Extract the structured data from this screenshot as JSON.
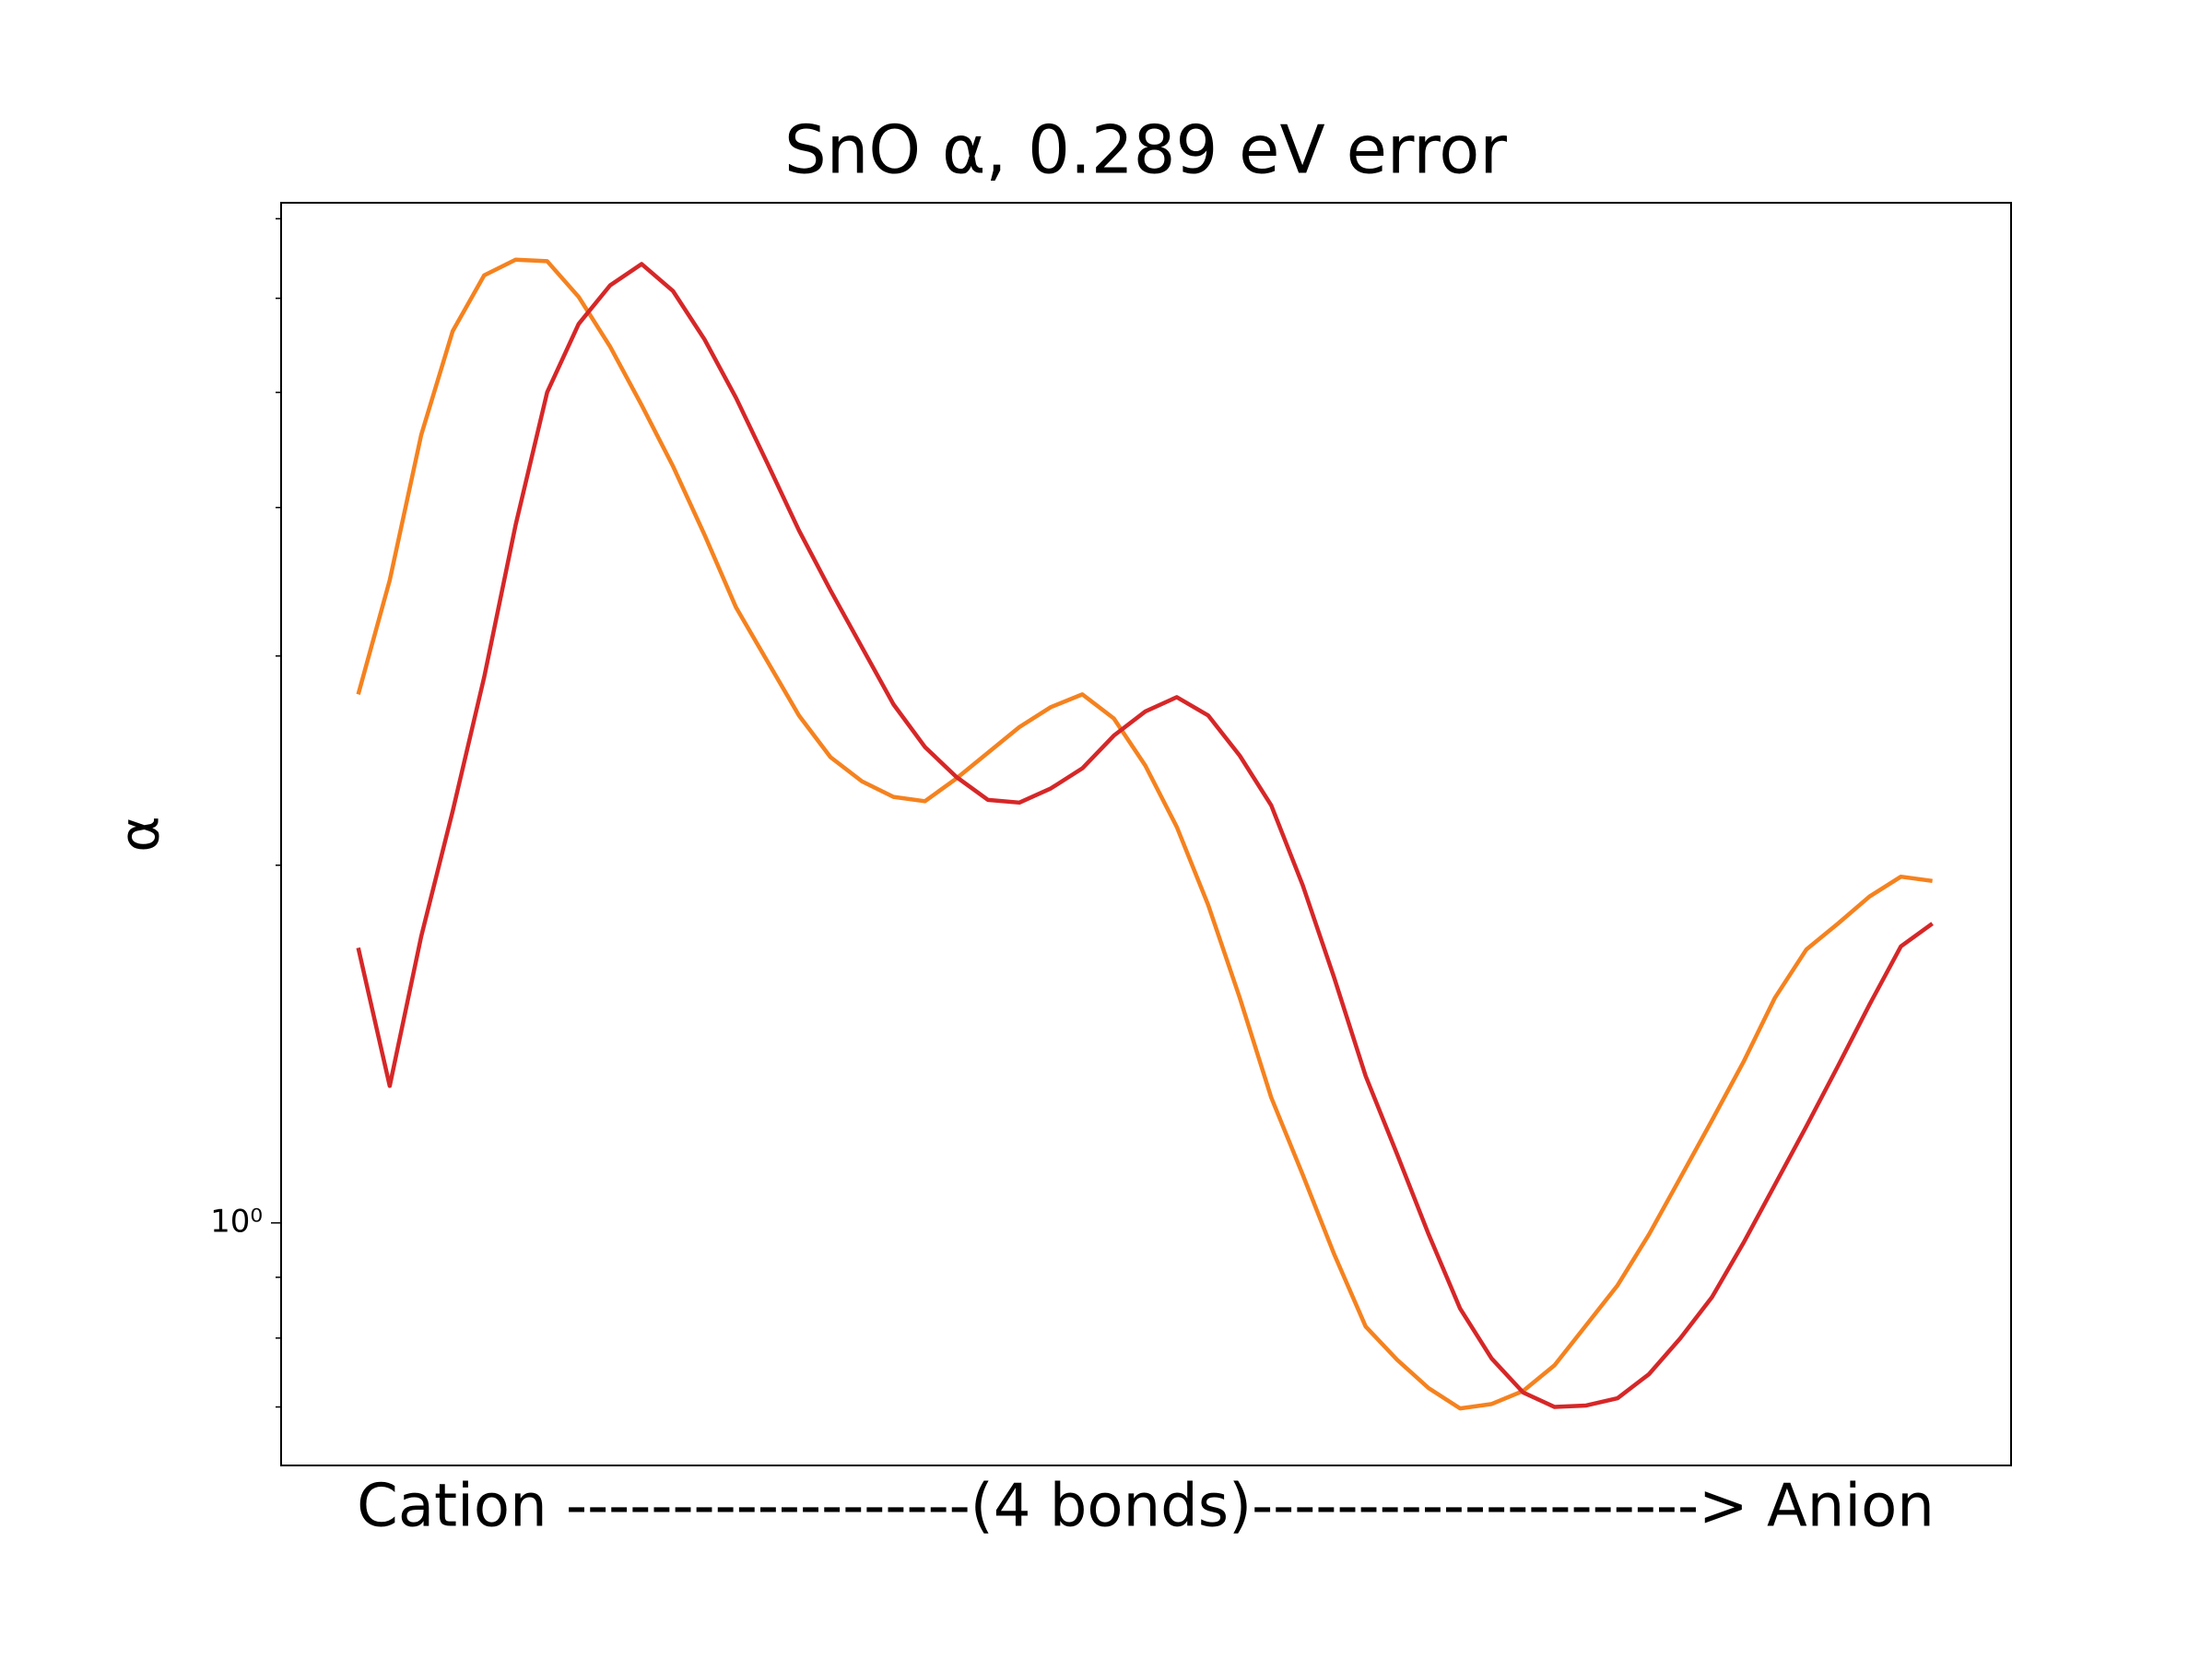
{
  "chart_data": {
    "type": "line",
    "title": "SnO α, 0.289 eV error",
    "xlabel": "Cation -------------------(4 bonds)---------------------> Anion",
    "ylabel": "α",
    "x": [
      0,
      2,
      4,
      6,
      8,
      10,
      12,
      14,
      16,
      18,
      20,
      22,
      24,
      26,
      28,
      30,
      32,
      34,
      36,
      38,
      40,
      42,
      44,
      46,
      48,
      50,
      52,
      54,
      56,
      58,
      60,
      62,
      64,
      66,
      68,
      70,
      72,
      74,
      76,
      78,
      80,
      82,
      84,
      86,
      88,
      90,
      92,
      94,
      96,
      98,
      100
    ],
    "xlim": [
      -4.9,
      105.0
    ],
    "ylim": [
      0.625,
      7.22
    ],
    "yscale": "log",
    "yticks": [
      {
        "value": 1,
        "label": "10⁰"
      }
    ],
    "yminorticks": [
      0.7,
      0.8,
      0.9,
      2,
      3,
      4,
      5,
      6,
      7
    ],
    "grid": false,
    "series": [
      {
        "color": "#f5821f",
        "values": [
          2.785,
          3.474,
          4.604,
          5.63,
          6.273,
          6.466,
          6.448,
          6.017,
          5.464,
          4.879,
          4.332,
          3.794,
          3.296,
          2.968,
          2.673,
          2.466,
          2.353,
          2.283,
          2.264,
          2.366,
          2.487,
          2.614,
          2.717,
          2.785,
          2.658,
          2.426,
          2.154,
          1.851,
          1.547,
          1.275,
          1.098,
          0.941,
          0.818,
          0.767,
          0.726,
          0.698,
          0.704,
          0.722,
          0.759,
          0.82,
          0.886,
          0.978,
          1.092,
          1.22,
          1.366,
          1.547,
          1.699,
          1.786,
          1.882,
          1.956,
          1.94
        ]
      },
      {
        "color": "#d62728",
        "values": [
          1.704,
          1.304,
          1.742,
          2.221,
          2.879,
          3.868,
          5.0,
          5.708,
          6.152,
          6.412,
          6.084,
          5.54,
          4.947,
          4.356,
          3.826,
          3.407,
          3.051,
          2.732,
          2.515,
          2.373,
          2.27,
          2.258,
          2.321,
          2.413,
          2.571,
          2.694,
          2.77,
          2.673,
          2.473,
          2.246,
          1.924,
          1.608,
          1.329,
          1.142,
          0.978,
          0.847,
          0.769,
          0.72,
          0.7,
          0.702,
          0.712,
          0.746,
          0.8,
          0.866,
          0.962,
          1.077,
          1.206,
          1.355,
          1.526,
          1.709,
          1.786
        ]
      }
    ]
  }
}
